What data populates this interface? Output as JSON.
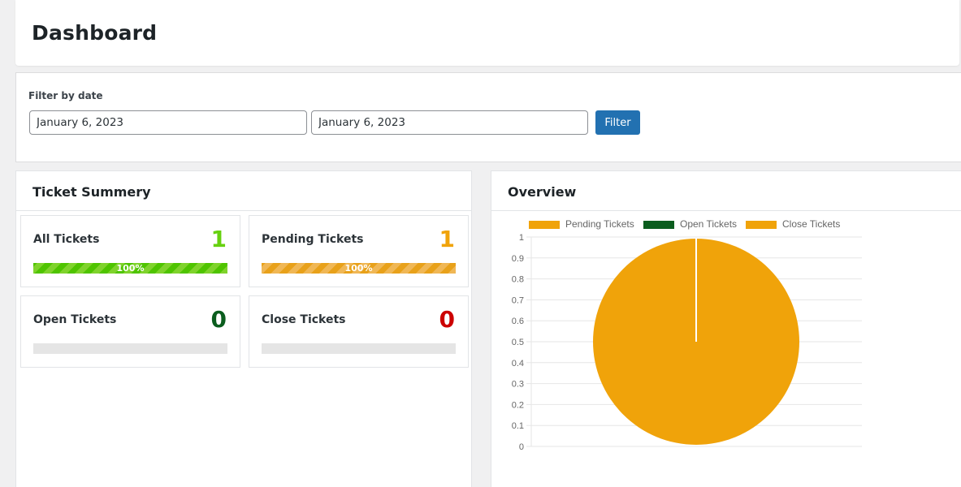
{
  "header": {
    "title": "Dashboard"
  },
  "filter": {
    "label": "Filter by date",
    "date_from": "January 6, 2023",
    "date_to": "January 6, 2023",
    "button_label": "Filter"
  },
  "summary": {
    "title": "Ticket Summery",
    "cards": [
      {
        "label": "All Tickets",
        "count": "1",
        "percent_label": "100%",
        "fill": 1,
        "color": "#66d10f"
      },
      {
        "label": "Pending Tickets",
        "count": "1",
        "percent_label": "100%",
        "fill": 1,
        "color": "#f0a30a"
      },
      {
        "label": "Open Tickets",
        "count": "0",
        "percent_label": "",
        "fill": 0,
        "color": "#0b5d1e"
      },
      {
        "label": "Close Tickets",
        "count": "0",
        "percent_label": "",
        "fill": 0,
        "color": "#cc0000"
      }
    ]
  },
  "overview": {
    "title": "Overview",
    "chart_data": {
      "type": "pie",
      "legend_position": "top",
      "grid": true,
      "ylim": [
        0,
        1
      ],
      "yticks": [
        "0",
        "0.1",
        "0.2",
        "0.3",
        "0.4",
        "0.5",
        "0.6",
        "0.7",
        "0.8",
        "0.9",
        "1"
      ],
      "series": [
        {
          "name": "Pending Tickets",
          "value": 1,
          "color": "#f0a30a"
        },
        {
          "name": "Open Tickets",
          "value": 0,
          "color": "#0b5d1e"
        },
        {
          "name": "Close Tickets",
          "value": 0,
          "color": "#f0a30a"
        }
      ]
    }
  }
}
